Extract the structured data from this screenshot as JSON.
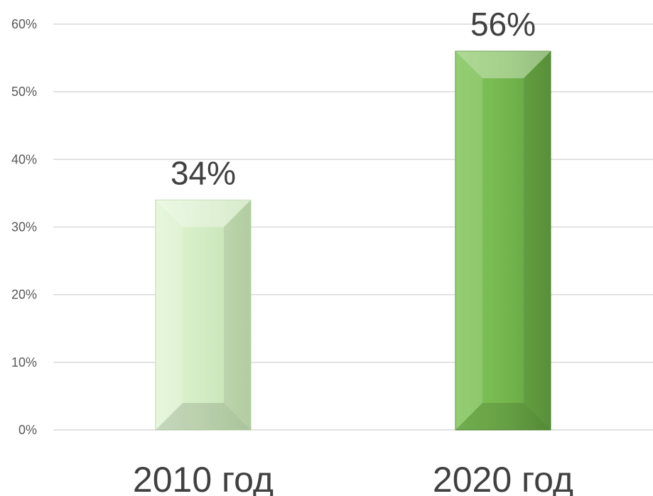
{
  "chart_data": {
    "type": "bar",
    "categories": [
      "2010 год",
      "2020 год"
    ],
    "values": [
      34,
      56
    ],
    "data_labels": [
      "34%",
      "56%"
    ],
    "ylim": [
      0,
      60
    ],
    "yticks": [
      0,
      10,
      20,
      30,
      40,
      50,
      60
    ],
    "ytick_labels": [
      "0%",
      "10%",
      "20%",
      "30%",
      "40%",
      "50%",
      "60%"
    ],
    "grid": true,
    "legend": "none",
    "bar_colors": [
      "#d4edc6",
      "#76b84f"
    ],
    "bar_edge_colors": [
      "#b9d9a6",
      "#4e8b2f"
    ]
  }
}
